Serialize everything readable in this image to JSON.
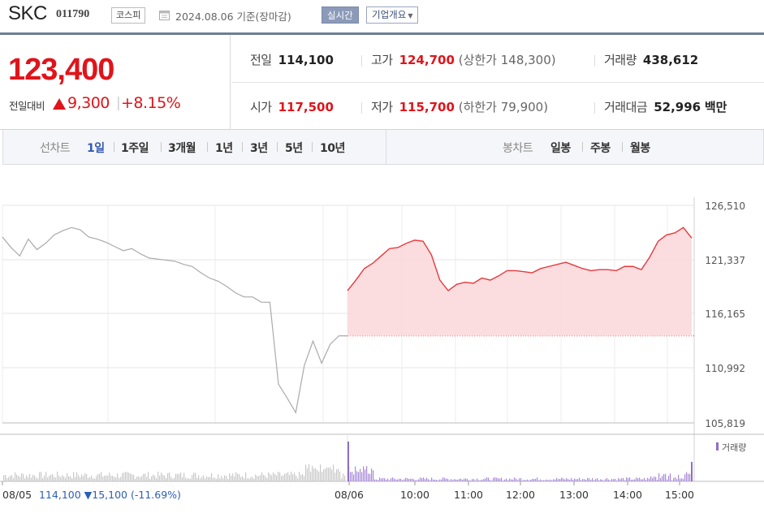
{
  "header": {
    "name": "SKC",
    "code": "011790",
    "market": "코스피",
    "date": "2024.08.06  기준(장마감)",
    "realtime_button": "실시간",
    "company_button": "기업개요"
  },
  "summary": {
    "price": "123,400",
    "diff_label": "전일대비",
    "diff_value": "9,300",
    "diff_rate": "+8.15%",
    "prev_label": "전일",
    "prev_value": "114,100",
    "high_label": "고가",
    "high_value": "124,700",
    "upper_limit": "(상한가 148,300)",
    "volume_label": "거래량",
    "volume_value": "438,612",
    "open_label": "시가",
    "open_value": "117,500",
    "low_label": "저가",
    "low_value": "115,700",
    "lower_limit": "(하한가 79,900)",
    "amount_label": "거래대금",
    "amount_value": "52,996",
    "amount_unit": "백만"
  },
  "tabs": {
    "line_label": "선차트",
    "periods": [
      "1일",
      "1주일",
      "3개월",
      "1년",
      "3년",
      "5년",
      "10년"
    ],
    "active": "1일",
    "candle_label": "봉차트",
    "candles": [
      "일봉",
      "주봉",
      "월봉"
    ]
  },
  "chart_data": {
    "type": "line",
    "y_ticks": [
      "126,510",
      "121,337",
      "116,165",
      "110,992",
      "105,819"
    ],
    "ylim": [
      105819,
      126510
    ],
    "x_labels": [
      "08/05",
      "08/06",
      "10:00",
      "11:00",
      "12:00",
      "13:00",
      "14:00",
      "15:00"
    ],
    "volume_legend": "거래량",
    "prev_day_note": "114,100 ▼15,100 (-11.69%)",
    "reference_price": 114100,
    "series": [
      {
        "name": "08/05",
        "color": "#aaaaaa",
        "values": [
          123500,
          122500,
          121700,
          123300,
          122300,
          122900,
          123700,
          124100,
          124400,
          124200,
          123500,
          123300,
          123000,
          122600,
          122200,
          122400,
          121900,
          121500,
          121400,
          121300,
          121200,
          120900,
          120700,
          120100,
          119600,
          119300,
          118800,
          118200,
          117800,
          117800,
          117300,
          117300,
          109500,
          108200,
          106800,
          111300,
          113600,
          111500,
          113300,
          114100,
          114100
        ]
      },
      {
        "name": "08/06",
        "color": "#e8383d",
        "values": [
          118400,
          119400,
          120500,
          121000,
          121700,
          122400,
          122500,
          122900,
          123200,
          123100,
          121800,
          119400,
          118400,
          119000,
          119200,
          119100,
          119600,
          119400,
          119800,
          120300,
          120300,
          120200,
          120100,
          120500,
          120700,
          120900,
          121100,
          120800,
          120500,
          120300,
          120400,
          120400,
          120300,
          120700,
          120700,
          120400,
          121600,
          123100,
          123700,
          123900,
          124400,
          123400
        ]
      }
    ]
  }
}
